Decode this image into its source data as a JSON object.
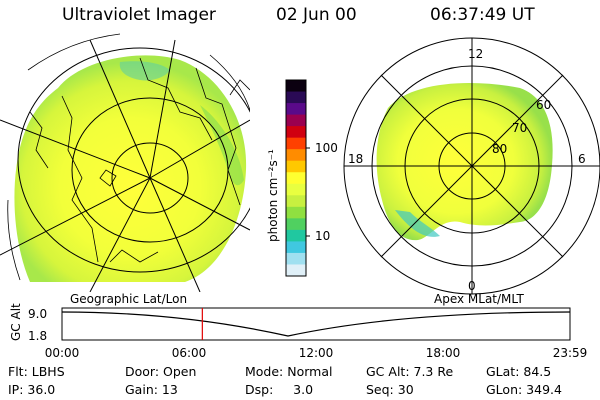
{
  "header": {
    "instrument": "Ultraviolet Imager",
    "date": "02 Jun 00",
    "time": "06:37:49 UT"
  },
  "colorbar": {
    "unit_label": "photon cm⁻²s⁻¹",
    "tick_labels": [
      "100",
      "10"
    ],
    "colors": [
      "#0b0010",
      "#2a0a55",
      "#5a0a8a",
      "#9a0050",
      "#d00010",
      "#ff4000",
      "#ff8c00",
      "#ffc800",
      "#ffff30",
      "#e8ff40",
      "#c8f040",
      "#90e040",
      "#50d060",
      "#20c8a0",
      "#40c8e0",
      "#a0e0f0",
      "#e0f0f8"
    ]
  },
  "left_map": {
    "caption": "Geographic Lat/Lon"
  },
  "right_map": {
    "caption": "Apex MLat/MLT",
    "mlt_labels": {
      "top": "12",
      "left": "18",
      "right": "6",
      "bottom": "0"
    },
    "lat_labels": [
      "60",
      "70",
      "80"
    ]
  },
  "altitude_plot": {
    "ylabel": "GC Alt",
    "y_ticks": [
      "9.0",
      "1.8"
    ],
    "x_ticks": [
      "00:00",
      "06:00",
      "12:00",
      "18:00",
      "23:59"
    ],
    "current_time_hours": 6.63
  },
  "info": {
    "flt": "Flt: LBHS",
    "door": "Door: Open",
    "mode": "Mode: Normal",
    "gcalt": "GC Alt: 7.3 Re",
    "glat": "GLat:  84.5",
    "ip": "IP: 36.0",
    "gain": "Gain: 13",
    "dsp": "Dsp:     3.0",
    "seq": "Seq: 30",
    "glon": "GLon: 349.4"
  }
}
